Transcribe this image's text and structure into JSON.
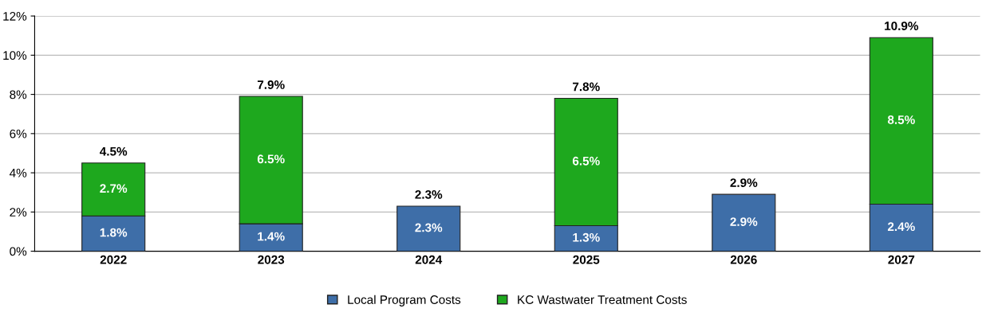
{
  "chart_data": {
    "type": "bar",
    "stacked": true,
    "categories": [
      "2022",
      "2023",
      "2024",
      "2025",
      "2026",
      "2027"
    ],
    "series": [
      {
        "name": "Local Program Costs",
        "color": "#3e6ea8",
        "values": [
          1.8,
          1.4,
          2.3,
          1.3,
          2.9,
          2.4
        ],
        "value_labels": [
          "1.8%",
          "1.4%",
          "2.3%",
          "1.3%",
          "2.9%",
          "2.4%"
        ]
      },
      {
        "name": "KC Wastwater Treatment Costs",
        "color": "#1ea81e",
        "values": [
          2.7,
          6.5,
          null,
          6.5,
          null,
          8.5
        ],
        "value_labels": [
          "2.7%",
          "6.5%",
          null,
          "6.5%",
          null,
          "8.5%"
        ]
      }
    ],
    "totals": [
      "4.5%",
      "7.9%",
      "2.3%",
      "7.8%",
      "2.9%",
      "10.9%"
    ],
    "ylim": [
      0,
      12
    ],
    "yticks": [
      {
        "value": 0,
        "label": "0%"
      },
      {
        "value": 2,
        "label": "2%"
      },
      {
        "value": 4,
        "label": "4%"
      },
      {
        "value": 6,
        "label": "6%"
      },
      {
        "value": 8,
        "label": "8%"
      },
      {
        "value": 10,
        "label": "10%"
      },
      {
        "value": 12,
        "label": "12%"
      }
    ],
    "grid": "y",
    "legend": "bottom"
  }
}
